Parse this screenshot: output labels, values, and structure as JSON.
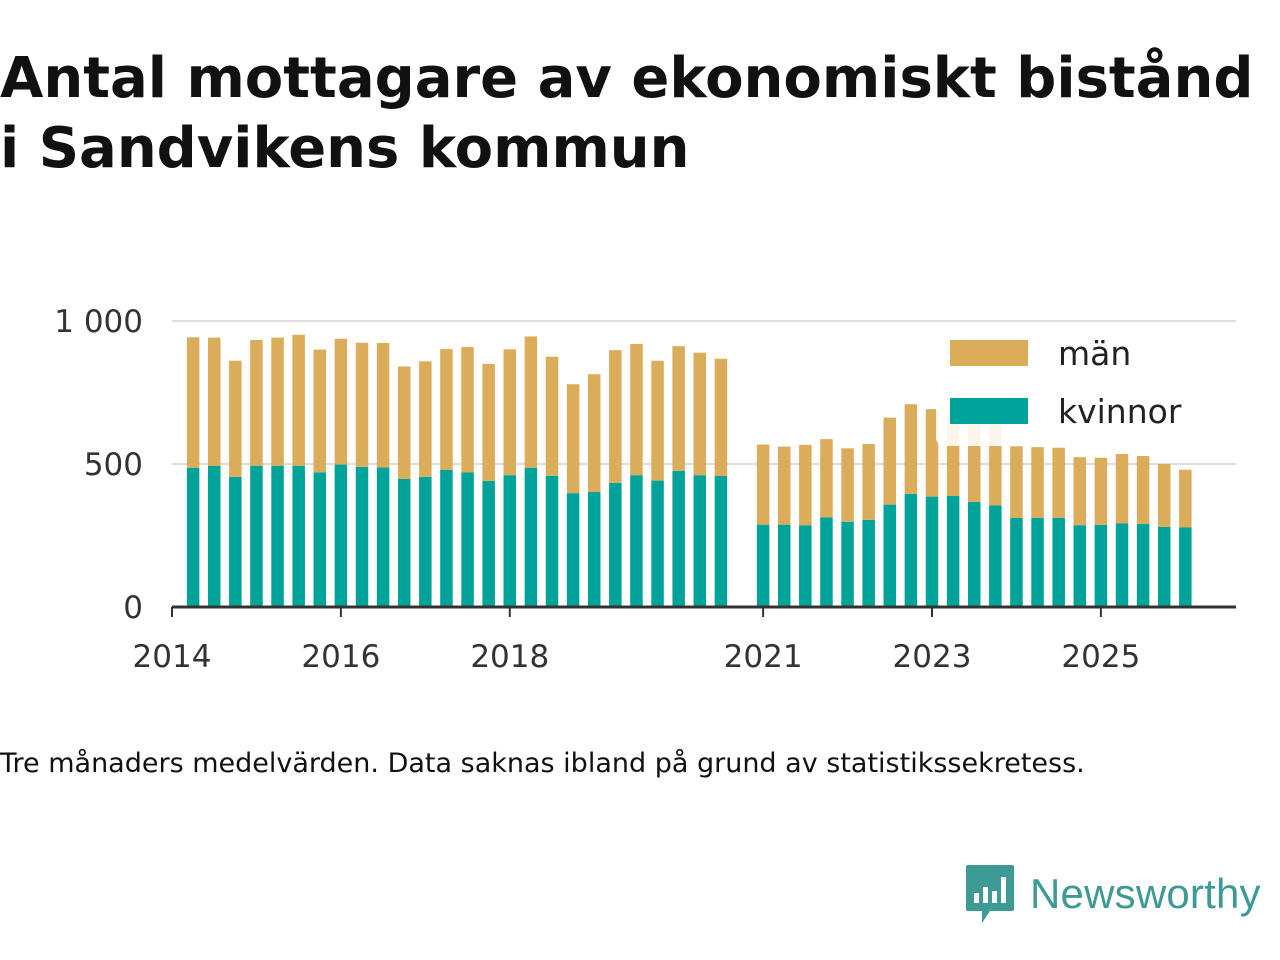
{
  "title": "Antal mottagare av ekonomiskt bistånd i Sandvikens kommun",
  "caption": "Tre månaders medelvärden. Data saknas ibland på grund av statistikssekretess.",
  "brand": {
    "name": "Newsworthy",
    "logo_icon": "bar-chart-speech-bubble-icon",
    "color": "#3d9a94"
  },
  "chart_data": {
    "type": "bar",
    "stacked": true,
    "x_axis": {
      "tick_labels": [
        "2014",
        "2016",
        "2018",
        "2021",
        "2023",
        "2025"
      ],
      "range": [
        2014.0,
        2026.6
      ]
    },
    "y_axis": {
      "tick_labels": [
        "0",
        "500",
        "1 000"
      ],
      "ticks": [
        0,
        500,
        1000
      ],
      "range": [
        0,
        1000
      ]
    },
    "grid": true,
    "legend": {
      "placement": "top-right",
      "order": [
        "män",
        "kvinnor"
      ]
    },
    "series": [
      {
        "name": "kvinnor",
        "color": "#00a39a",
        "values": [
          487,
          493,
          455,
          494,
          494,
          494,
          471,
          498,
          490,
          488,
          448,
          455,
          480,
          471,
          441,
          461,
          487,
          459,
          398,
          402,
          434,
          461,
          442,
          476,
          461,
          458,
          288,
          288,
          286,
          313,
          298,
          305,
          358,
          395,
          386,
          388,
          367,
          355,
          312,
          312,
          312,
          286,
          287,
          292,
          290,
          280,
          278
        ]
      },
      {
        "name": "män",
        "color": "#dbad5a",
        "values": [
          456,
          449,
          406,
          440,
          448,
          458,
          429,
          440,
          434,
          435,
          393,
          404,
          422,
          438,
          409,
          440,
          459,
          416,
          381,
          412,
          464,
          459,
          419,
          436,
          428,
          410,
          280,
          273,
          281,
          274,
          257,
          265,
          304,
          314,
          306,
          303,
          322,
          320,
          250,
          247,
          245,
          238,
          235,
          243,
          238,
          220,
          202
        ]
      }
    ],
    "x": [
      "2014-Q2",
      "2014-Q3",
      "2014-Q4",
      "2015-Q1",
      "2015-Q2",
      "2015-Q3",
      "2015-Q4",
      "2016-Q1",
      "2016-Q2",
      "2016-Q3",
      "2016-Q4",
      "2017-Q1",
      "2017-Q2",
      "2017-Q3",
      "2017-Q4",
      "2018-Q1",
      "2018-Q2",
      "2018-Q3",
      "2018-Q4",
      "2019-Q1",
      "2019-Q2",
      "2019-Q3",
      "2019-Q4",
      "2020-Q1",
      "2020-Q2",
      "2020-Q3",
      "2021-Q1",
      "2021-Q2",
      "2021-Q3",
      "2021-Q4",
      "2022-Q1",
      "2022-Q2",
      "2022-Q3",
      "2022-Q4",
      "2023-Q1",
      "2023-Q2",
      "2023-Q3",
      "2023-Q4",
      "2024-Q1",
      "2024-Q2",
      "2024-Q3",
      "2024-Q4",
      "2025-Q1",
      "2025-Q2",
      "2025-Q3",
      "2025-Q4",
      "2026-Q1"
    ],
    "x_decimal": [
      2014.25,
      2014.5,
      2014.75,
      2015.0,
      2015.25,
      2015.5,
      2015.75,
      2016.0,
      2016.25,
      2016.5,
      2016.75,
      2017.0,
      2017.25,
      2017.5,
      2017.75,
      2018.0,
      2018.25,
      2018.5,
      2018.75,
      2019.0,
      2019.25,
      2019.5,
      2019.75,
      2020.0,
      2020.25,
      2020.5,
      2021.0,
      2021.25,
      2021.5,
      2021.75,
      2022.0,
      2022.25,
      2022.5,
      2022.75,
      2023.0,
      2023.25,
      2023.5,
      2023.75,
      2024.0,
      2024.25,
      2024.5,
      2024.75,
      2025.0,
      2025.25,
      2025.5,
      2025.75,
      2026.0
    ]
  }
}
